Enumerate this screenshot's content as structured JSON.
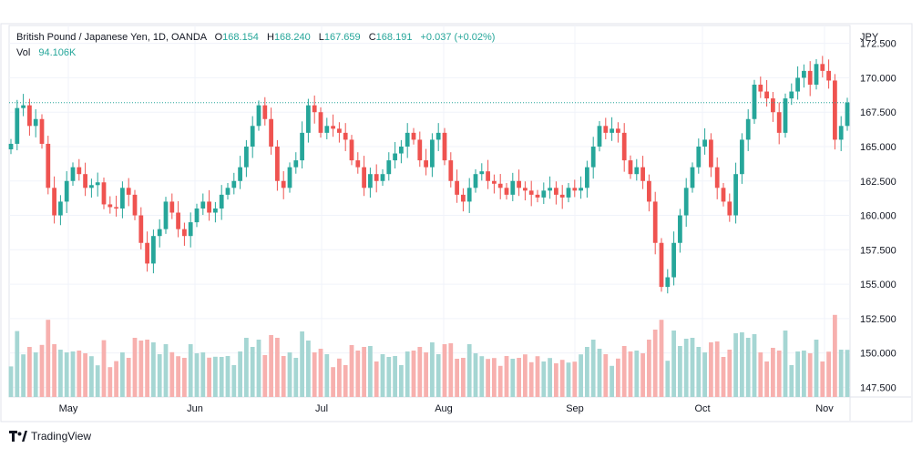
{
  "legend": {
    "title": "British Pound / Japanese Yen, 1D, OANDA",
    "o_label": "O",
    "o_value": "168.154",
    "h_label": "H",
    "h_value": "168.240",
    "l_label": "L",
    "l_value": "167.659",
    "c_label": "C",
    "c_value": "168.191",
    "change": "+0.037 (+0.02%)",
    "vol_label": "Vol",
    "vol_value": "94.106K"
  },
  "brand": {
    "name": "TradingView",
    "icon": "tradingview-logo-icon"
  },
  "colors": {
    "up": "#26a69a",
    "down": "#ef5350",
    "up_vol": "#a5d6d3",
    "down_vol": "#f7b0ae",
    "price_line": "#26a69a"
  },
  "chart_data": {
    "type": "candlestick",
    "currency_label": "JPY",
    "y_ticks": [
      "172.500",
      "170.000",
      "167.500",
      "165.000",
      "162.500",
      "160.000",
      "157.500",
      "155.000",
      "152.500",
      "150.000",
      "147.500"
    ],
    "ylim": [
      146.8,
      173.8
    ],
    "x_labels": [
      "May",
      "Jun",
      "Jul",
      "Aug",
      "Sep",
      "Oct",
      "Nov"
    ],
    "last_close": 168.191,
    "series": [
      {
        "name": "Vol",
        "values": []
      }
    ],
    "closes": [
      165.2,
      167.8,
      168.0,
      166.5,
      167.0,
      165.2,
      162.0,
      160.0,
      161.0,
      162.5,
      163.5,
      163.0,
      162.0,
      162.2,
      162.4,
      160.8,
      160.6,
      160.5,
      162.0,
      161.5,
      160.0,
      158.0,
      156.5,
      158.5,
      159.0,
      161.0,
      160.2,
      159.0,
      158.5,
      159.5,
      160.5,
      161.0,
      160.2,
      160.5,
      161.5,
      162.0,
      162.5,
      163.5,
      165.0,
      166.5,
      168.0,
      167.0,
      165.0,
      162.5,
      162.0,
      163.5,
      164.0,
      166.0,
      168.0,
      167.5,
      166.0,
      166.5,
      166.3,
      166.0,
      165.5,
      164.0,
      163.5,
      162.0,
      163.0,
      162.5,
      163.0,
      164.0,
      164.5,
      165.0,
      166.0,
      165.5,
      164.0,
      163.5,
      165.5,
      166.0,
      164.0,
      162.5,
      161.5,
      161.0,
      162.0,
      163.0,
      163.2,
      162.5,
      162.3,
      162.0,
      161.5,
      162.5,
      162.0,
      161.8,
      161.5,
      161.3,
      161.8,
      162.0,
      161.5,
      161.3,
      162.0,
      161.8,
      162.0,
      163.5,
      165.0,
      166.5,
      166.0,
      166.3,
      166.0,
      164.0,
      163.0,
      163.5,
      162.5,
      161.0,
      158.0,
      154.8,
      155.5,
      158.0,
      160.0,
      162.0,
      163.5,
      165.0,
      165.5,
      163.5,
      162.0,
      161.0,
      160.0,
      163.0,
      165.5,
      167.0,
      169.5,
      169.0,
      168.5,
      167.5,
      166.0,
      168.5,
      169.0,
      170.0,
      170.5,
      169.5,
      171.0,
      170.5,
      169.8,
      165.5,
      166.5,
      168.2
    ]
  }
}
